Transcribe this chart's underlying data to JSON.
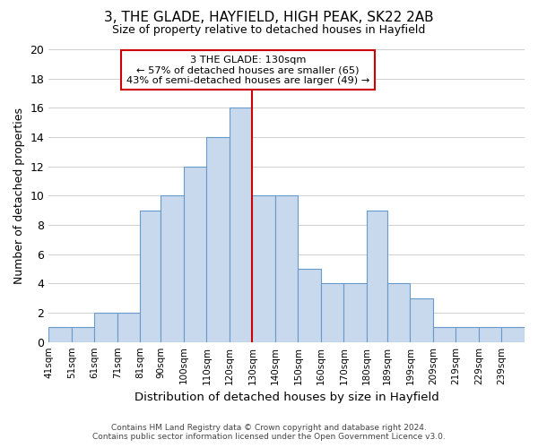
{
  "title": "3, THE GLADE, HAYFIELD, HIGH PEAK, SK22 2AB",
  "subtitle": "Size of property relative to detached houses in Hayfield",
  "xlabel": "Distribution of detached houses by size in Hayfield",
  "ylabel": "Number of detached properties",
  "footer_line1": "Contains HM Land Registry data © Crown copyright and database right 2024.",
  "footer_line2": "Contains public sector information licensed under the Open Government Licence v3.0.",
  "bin_labels": [
    "41sqm",
    "51sqm",
    "61sqm",
    "71sqm",
    "81sqm",
    "90sqm",
    "100sqm",
    "110sqm",
    "120sqm",
    "130sqm",
    "140sqm",
    "150sqm",
    "160sqm",
    "170sqm",
    "180sqm",
    "189sqm",
    "199sqm",
    "209sqm",
    "219sqm",
    "229sqm",
    "239sqm"
  ],
  "bin_edges": [
    41,
    51,
    61,
    71,
    81,
    90,
    100,
    110,
    120,
    130,
    140,
    150,
    160,
    170,
    180,
    189,
    199,
    209,
    219,
    229,
    239,
    249
  ],
  "counts": [
    1,
    1,
    2,
    2,
    9,
    10,
    12,
    14,
    16,
    10,
    10,
    5,
    4,
    4,
    9,
    4,
    3,
    1,
    1,
    1,
    1
  ],
  "bar_color": "#c9d9ed",
  "bar_edge_color": "#6699cc",
  "marker_value": 130,
  "marker_color": "#cc0000",
  "annotation_title": "3 THE GLADE: 130sqm",
  "annotation_line1": "← 57% of detached houses are smaller (65)",
  "annotation_line2": "43% of semi-detached houses are larger (49) →",
  "annotation_box_color": "#ffffff",
  "annotation_box_edge_color": "#cc0000",
  "ylim": [
    0,
    20
  ],
  "yticks": [
    0,
    2,
    4,
    6,
    8,
    10,
    12,
    14,
    16,
    18,
    20
  ],
  "background_color": "#ffffff",
  "grid_color": "#d0d0d0"
}
